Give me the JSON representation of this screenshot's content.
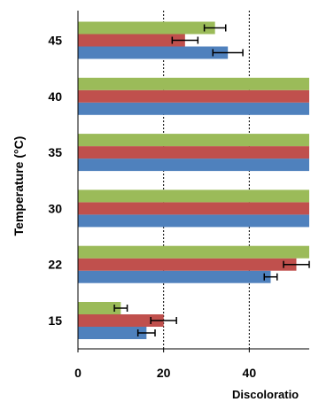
{
  "chart_data": {
    "type": "bar",
    "orientation": "horizontal",
    "title": "",
    "xlabel": "Discoloratio",
    "ylabel": "Temperature (°C)",
    "categories": [
      "15",
      "22",
      "30",
      "35",
      "40",
      "45"
    ],
    "xlim": [
      0,
      54
    ],
    "xticks": [
      0,
      20,
      40
    ],
    "gridlines": [
      20,
      40
    ],
    "series": [
      {
        "color": "#4f81bd",
        "values": [
          16,
          45,
          54,
          54,
          54,
          35
        ],
        "errors": [
          2,
          1.5,
          null,
          null,
          null,
          3.5
        ]
      },
      {
        "color": "#c0504d",
        "values": [
          20,
          51,
          54,
          54,
          54,
          25
        ],
        "errors": [
          3,
          3,
          null,
          null,
          null,
          3
        ]
      },
      {
        "color": "#9bbb59",
        "values": [
          10,
          54,
          54,
          54,
          54,
          32
        ],
        "errors": [
          1.5,
          null,
          null,
          null,
          null,
          2.5
        ]
      }
    ]
  }
}
